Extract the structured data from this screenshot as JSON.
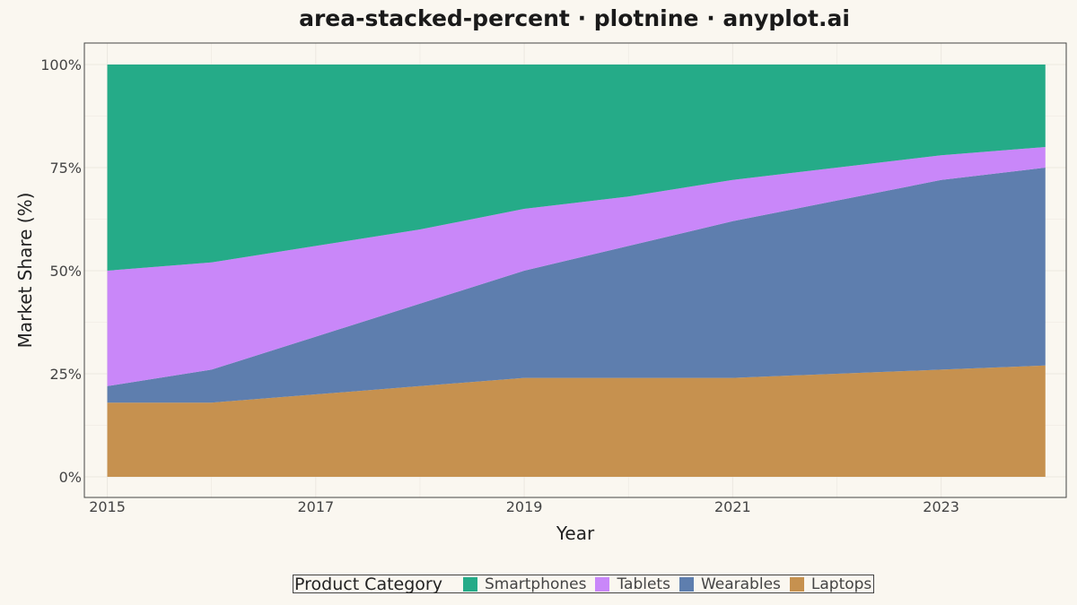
{
  "chart_data": {
    "type": "area",
    "stacked": "percent",
    "title": "area-stacked-percent · plotnine · anyplot.ai",
    "xlabel": "Year",
    "ylabel": "Market Share (%)",
    "x": [
      2015,
      2016,
      2017,
      2018,
      2019,
      2020,
      2021,
      2022,
      2023,
      2024
    ],
    "xlim": [
      2014.78,
      2024.2
    ],
    "ylim": [
      0,
      100
    ],
    "x_ticks": [
      2015,
      2017,
      2019,
      2021,
      2023
    ],
    "x_tick_labels": [
      "2015",
      "2017",
      "2019",
      "2021",
      "2023"
    ],
    "y_ticks": [
      0,
      25,
      50,
      75,
      100
    ],
    "y_tick_labels": [
      "0%",
      "25%",
      "50%",
      "75%",
      "100%"
    ],
    "grid": true,
    "legend_position": "bottom",
    "legend_title": "Product Category",
    "series": [
      {
        "name": "Smartphones",
        "color": "#25AB88",
        "values": [
          50,
          48,
          44,
          40,
          35,
          32,
          28,
          25,
          22,
          20
        ]
      },
      {
        "name": "Tablets",
        "color": "#C987F9",
        "values": [
          28,
          26,
          22,
          18,
          15,
          12,
          10,
          8,
          6,
          5
        ]
      },
      {
        "name": "Wearables",
        "color": "#5E7EAE",
        "values": [
          4,
          8,
          14,
          20,
          26,
          32,
          38,
          42,
          46,
          48
        ]
      },
      {
        "name": "Laptops",
        "color": "#C6914F",
        "values": [
          18,
          18,
          20,
          22,
          24,
          24,
          24,
          25,
          26,
          27
        ]
      }
    ]
  }
}
